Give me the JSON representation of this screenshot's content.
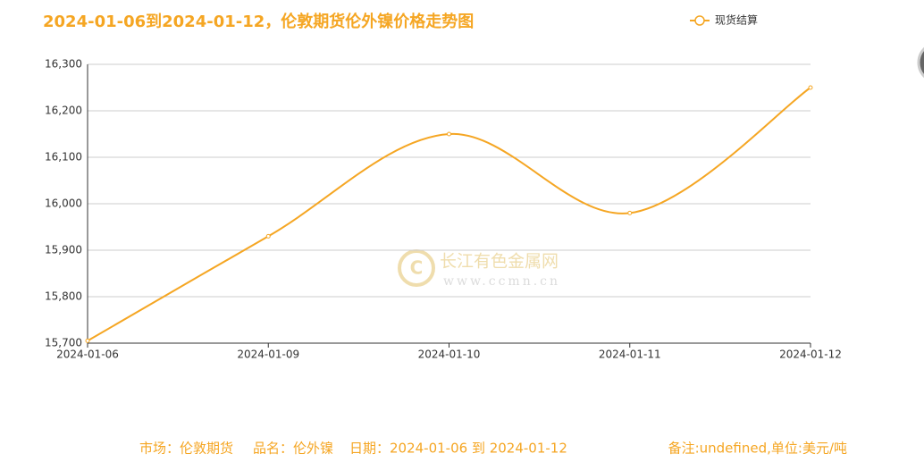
{
  "chart_data": {
    "type": "line",
    "title": "2024-01-06到2024-01-12，伦敦期货伦外镍价格走势图",
    "categories": [
      "2024-01-06",
      "2024-01-09",
      "2024-01-10",
      "2024-01-11",
      "2024-01-12"
    ],
    "series": [
      {
        "name": "现货结算",
        "color": "#f5a623",
        "values": [
          15705,
          15930,
          16150,
          15980,
          16250
        ]
      }
    ],
    "ylim": [
      15700,
      16300
    ],
    "yticks": [
      {
        "value": 15700,
        "label": "15,700"
      },
      {
        "value": 15800,
        "label": "15,800"
      },
      {
        "value": 15900,
        "label": "15,900"
      },
      {
        "value": 16000,
        "label": "16,000"
      },
      {
        "value": 16100,
        "label": "16,100"
      },
      {
        "value": 16200,
        "label": "16,200"
      },
      {
        "value": 16300,
        "label": "16,300"
      }
    ],
    "grid": true,
    "smooth": true,
    "legend": "top-right"
  },
  "watermark": {
    "name": "长江有色金属网",
    "url": "www.ccmn.cn"
  },
  "footer": {
    "market": "市场：伦敦期货",
    "product": "品名：伦外镍",
    "date": "日期：2024-01-06 到 2024-01-12",
    "note": "备注:undefined,单位:美元/吨"
  }
}
